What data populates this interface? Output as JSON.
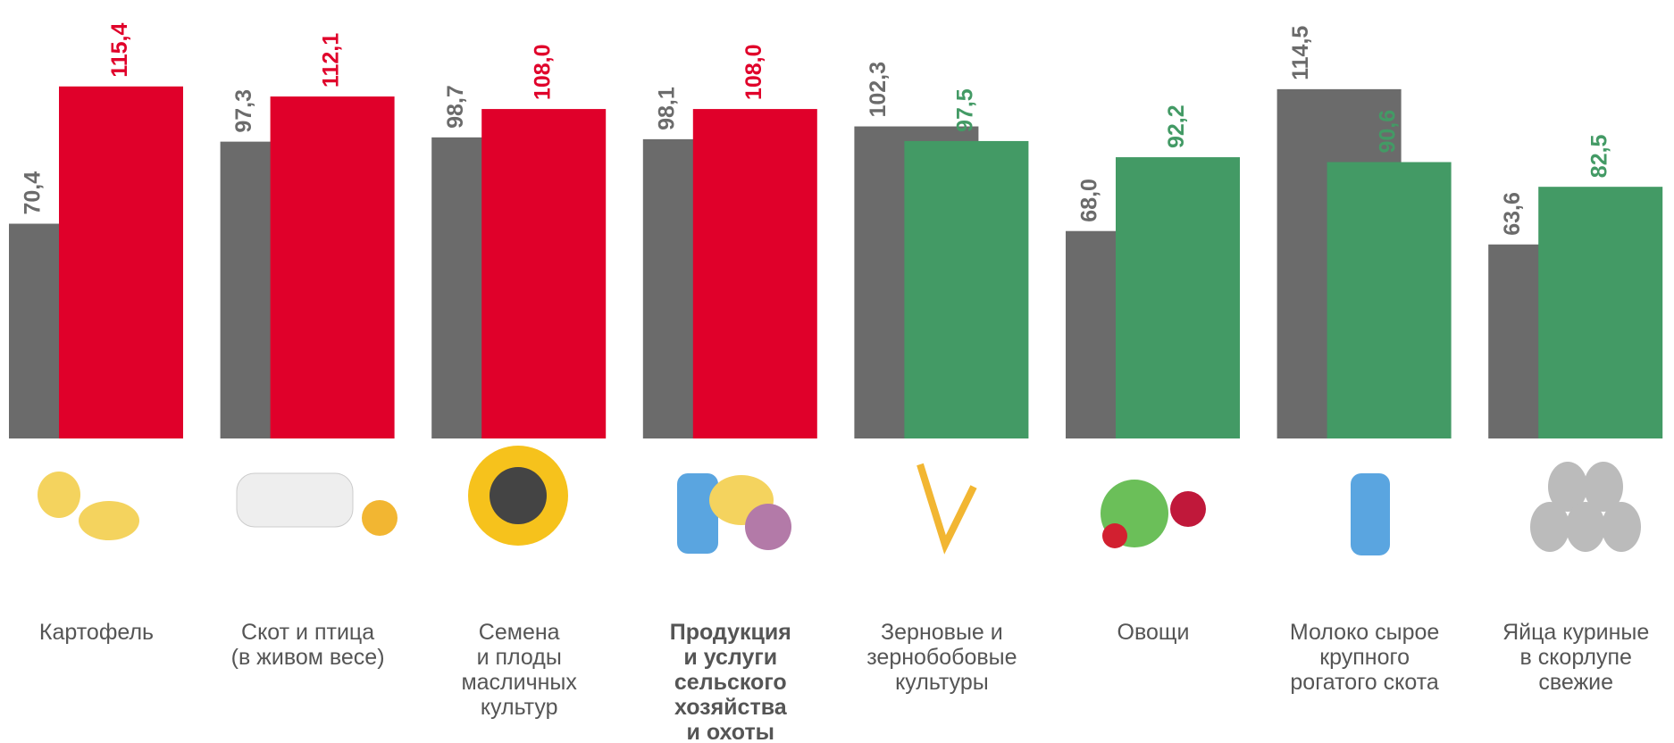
{
  "chart_data": {
    "type": "bar",
    "categories": [
      "Картофель",
      "Скот и птица\n(в живом весе)",
      "Семена\nи плоды\nмасличных\nкультур",
      "Продукция\nи услуги\nсельского\nхозяйства\nи охоты",
      "Зерновые и\nзернобобовые\nкультуры",
      "Овощи",
      "Молоко сырое\nкрупного\nрогатого скота",
      "Яйца куриные\nв скорлупе\nсвежие"
    ],
    "highlight_category": 3,
    "series": [
      {
        "color": "#6b6b6b",
        "values": [
          70.4,
          97.3,
          98.7,
          98.1,
          102.3,
          68.0,
          114.5,
          63.6
        ],
        "value_labels": [
          "70,4",
          "97,3",
          "98,7",
          "98,1",
          "102,3",
          "68,0",
          "114,5",
          "63,6"
        ]
      },
      {
        "colors": [
          "#e0002a",
          "#e0002a",
          "#e0002a",
          "#e0002a",
          "#439a65",
          "#439a65",
          "#439a65",
          "#439a65"
        ],
        "values": [
          115.4,
          112.1,
          108.0,
          108.0,
          97.5,
          92.2,
          90.6,
          82.5
        ],
        "value_labels": [
          "115,4",
          "112,1",
          "108,0",
          "108,0",
          "97,5",
          "92,2",
          "90,6",
          "82,5"
        ]
      }
    ],
    "ylim": [
      0,
      125
    ]
  }
}
